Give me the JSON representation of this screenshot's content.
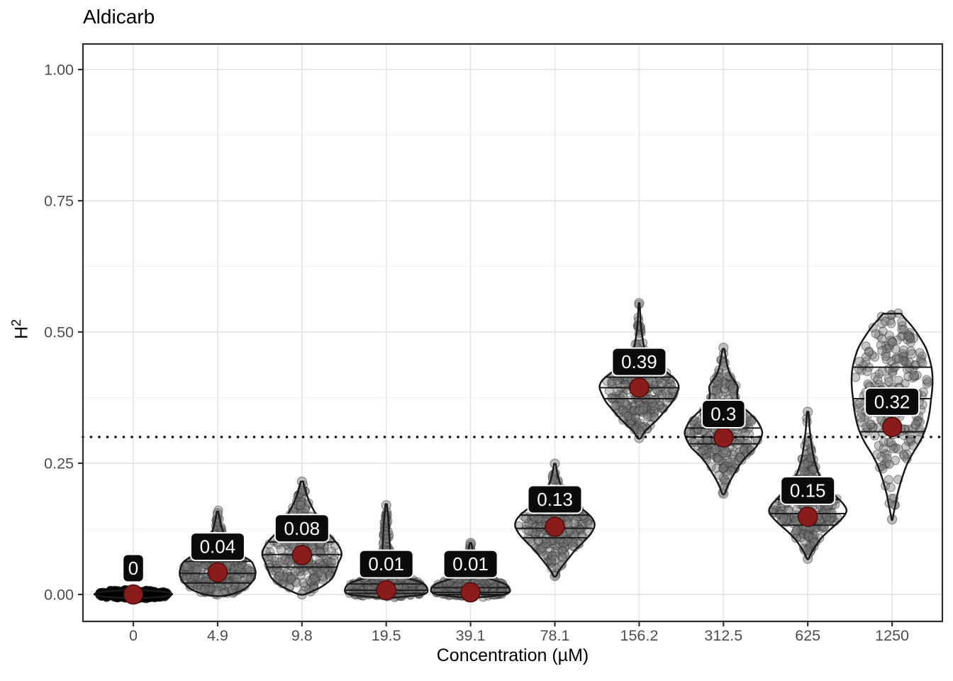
{
  "chart_data": {
    "type": "violin",
    "title": "Aldicarb",
    "xlabel": "Concentration (µM)",
    "ylabel_base": "H",
    "ylabel_exponent": "2",
    "ylim": [
      -0.05,
      1.05
    ],
    "grid": "major-and-minor-horizontal, major-vertical",
    "legend": "none",
    "reference_line": {
      "y": 0.3,
      "style": "dotted"
    },
    "y_axis": {
      "ticks": [
        {
          "value": 0.0,
          "label": "0.00"
        },
        {
          "value": 0.25,
          "label": "0.25"
        },
        {
          "value": 0.5,
          "label": "0.50"
        },
        {
          "value": 0.75,
          "label": "0.75"
        },
        {
          "value": 1.0,
          "label": "1.00"
        }
      ],
      "minor_ticks": [
        0.125,
        0.375,
        0.625,
        0.875
      ]
    },
    "categories": [
      "0",
      "4.9",
      "9.8",
      "19.5",
      "39.1",
      "78.1",
      "156.2",
      "312.5",
      "625",
      "1250"
    ],
    "series": [
      {
        "concentration": "0",
        "mean": 0.0,
        "mean_label": "0",
        "label_y": 0.05,
        "width_frac": 0.9,
        "n_points": 340,
        "dense": true,
        "quartile_lines": [],
        "end_points": [],
        "profile": [
          [
            -0.008,
            0.02
          ],
          [
            -0.006,
            0.45
          ],
          [
            -0.004,
            0.8
          ],
          [
            -0.001,
            1.0
          ],
          [
            0.002,
            1.0
          ],
          [
            0.005,
            0.8
          ],
          [
            0.007,
            0.45
          ],
          [
            0.009,
            0.02
          ]
        ]
      },
      {
        "concentration": "4.9",
        "mean": 0.042,
        "mean_label": "0.04",
        "label_y": 0.091,
        "width_frac": 0.9,
        "n_points": 280,
        "dense": false,
        "quartile_lines": [
          0.022,
          0.04,
          0.063
        ],
        "end_points": [
          0.0,
          0.155
        ],
        "profile": [
          [
            -0.003,
            0.05
          ],
          [
            0.0,
            0.35
          ],
          [
            0.01,
            0.7
          ],
          [
            0.025,
            0.92
          ],
          [
            0.04,
            1.0
          ],
          [
            0.055,
            0.95
          ],
          [
            0.065,
            0.85
          ],
          [
            0.08,
            0.5
          ],
          [
            0.1,
            0.24
          ],
          [
            0.125,
            0.12
          ],
          [
            0.145,
            0.05
          ],
          [
            0.158,
            0.02
          ]
        ]
      },
      {
        "concentration": "9.8",
        "mean": 0.075,
        "mean_label": "0.08",
        "label_y": 0.126,
        "width_frac": 0.94,
        "n_points": 280,
        "dense": false,
        "quartile_lines": [
          0.052,
          0.076,
          0.1
        ],
        "end_points": [
          0.0,
          0.215
        ],
        "profile": [
          [
            0.0,
            0.06
          ],
          [
            0.004,
            0.2
          ],
          [
            0.015,
            0.5
          ],
          [
            0.03,
            0.75
          ],
          [
            0.045,
            0.85
          ],
          [
            0.06,
            0.92
          ],
          [
            0.075,
            1.0
          ],
          [
            0.09,
            0.95
          ],
          [
            0.105,
            0.8
          ],
          [
            0.12,
            0.62
          ],
          [
            0.14,
            0.45
          ],
          [
            0.16,
            0.3
          ],
          [
            0.18,
            0.17
          ],
          [
            0.2,
            0.08
          ],
          [
            0.215,
            0.03
          ]
        ]
      },
      {
        "concentration": "19.5",
        "mean": 0.008,
        "mean_label": "0.01",
        "label_y": 0.058,
        "width_frac": 0.97,
        "n_points": 280,
        "dense": false,
        "quartile_lines": [
          0.002,
          0.008,
          0.02
        ],
        "end_points": [
          0.17
        ],
        "profile": [
          [
            -0.007,
            0.05
          ],
          [
            -0.004,
            0.45
          ],
          [
            -0.001,
            0.85
          ],
          [
            0.004,
            1.0
          ],
          [
            0.012,
            1.0
          ],
          [
            0.02,
            0.92
          ],
          [
            0.027,
            0.7
          ],
          [
            0.033,
            0.4
          ],
          [
            0.04,
            0.22
          ],
          [
            0.05,
            0.15
          ],
          [
            0.065,
            0.11
          ],
          [
            0.09,
            0.09
          ],
          [
            0.12,
            0.07
          ],
          [
            0.145,
            0.05
          ],
          [
            0.16,
            0.03
          ],
          [
            0.172,
            0.02
          ]
        ]
      },
      {
        "concentration": "39.1",
        "mean": 0.004,
        "mean_label": "0.01",
        "label_y": 0.058,
        "width_frac": 0.92,
        "n_points": 280,
        "dense": false,
        "quartile_lines": [
          0.0,
          0.004,
          0.013
        ],
        "end_points": [
          0.098
        ],
        "profile": [
          [
            -0.007,
            0.05
          ],
          [
            -0.004,
            0.4
          ],
          [
            -0.001,
            0.8
          ],
          [
            0.004,
            1.0
          ],
          [
            0.012,
            1.0
          ],
          [
            0.02,
            0.88
          ],
          [
            0.027,
            0.62
          ],
          [
            0.034,
            0.35
          ],
          [
            0.042,
            0.2
          ],
          [
            0.052,
            0.13
          ],
          [
            0.065,
            0.09
          ],
          [
            0.08,
            0.06
          ],
          [
            0.09,
            0.04
          ],
          [
            0.098,
            0.02
          ]
        ]
      },
      {
        "concentration": "78.1",
        "mean": 0.129,
        "mean_label": "0.13",
        "label_y": 0.181,
        "width_frac": 0.94,
        "n_points": 270,
        "dense": false,
        "quartile_lines": [
          0.108,
          0.126,
          0.151
        ],
        "end_points": [
          0.035,
          0.249
        ],
        "profile": [
          [
            0.035,
            0.03
          ],
          [
            0.045,
            0.1
          ],
          [
            0.055,
            0.2
          ],
          [
            0.07,
            0.36
          ],
          [
            0.085,
            0.52
          ],
          [
            0.1,
            0.72
          ],
          [
            0.115,
            0.9
          ],
          [
            0.13,
            1.0
          ],
          [
            0.142,
            0.97
          ],
          [
            0.155,
            0.82
          ],
          [
            0.168,
            0.6
          ],
          [
            0.182,
            0.38
          ],
          [
            0.196,
            0.22
          ],
          [
            0.21,
            0.14
          ],
          [
            0.228,
            0.07
          ],
          [
            0.249,
            0.02
          ]
        ]
      },
      {
        "concentration": "156.2",
        "mean": 0.394,
        "mean_label": "0.39",
        "label_y": 0.443,
        "width_frac": 0.94,
        "n_points": 270,
        "dense": false,
        "quartile_lines": [
          0.373,
          0.394,
          0.414
        ],
        "end_points": [
          0.298,
          0.555
        ],
        "profile": [
          [
            0.298,
            0.04
          ],
          [
            0.31,
            0.14
          ],
          [
            0.322,
            0.3
          ],
          [
            0.335,
            0.48
          ],
          [
            0.35,
            0.65
          ],
          [
            0.365,
            0.82
          ],
          [
            0.38,
            0.93
          ],
          [
            0.395,
            1.0
          ],
          [
            0.408,
            0.93
          ],
          [
            0.42,
            0.75
          ],
          [
            0.432,
            0.5
          ],
          [
            0.443,
            0.3
          ],
          [
            0.455,
            0.2
          ],
          [
            0.47,
            0.13
          ],
          [
            0.49,
            0.08
          ],
          [
            0.515,
            0.04
          ],
          [
            0.545,
            0.02
          ],
          [
            0.555,
            0.01
          ]
        ]
      },
      {
        "concentration": "312.5",
        "mean": 0.299,
        "mean_label": "0.3",
        "label_y": 0.344,
        "width_frac": 0.92,
        "n_points": 270,
        "dense": false,
        "quartile_lines": [
          0.287,
          0.3,
          0.317
        ],
        "end_points": [
          0.192,
          0.47
        ],
        "profile": [
          [
            0.192,
            0.03
          ],
          [
            0.205,
            0.1
          ],
          [
            0.22,
            0.2
          ],
          [
            0.235,
            0.32
          ],
          [
            0.25,
            0.45
          ],
          [
            0.265,
            0.62
          ],
          [
            0.28,
            0.83
          ],
          [
            0.295,
            0.95
          ],
          [
            0.308,
            1.0
          ],
          [
            0.32,
            0.95
          ],
          [
            0.332,
            0.85
          ],
          [
            0.345,
            0.68
          ],
          [
            0.357,
            0.5
          ],
          [
            0.37,
            0.38
          ],
          [
            0.382,
            0.35
          ],
          [
            0.395,
            0.37
          ],
          [
            0.405,
            0.3
          ],
          [
            0.418,
            0.18
          ],
          [
            0.435,
            0.1
          ],
          [
            0.452,
            0.06
          ],
          [
            0.468,
            0.02
          ]
        ]
      },
      {
        "concentration": "625",
        "mean": 0.148,
        "mean_label": "0.15",
        "label_y": 0.198,
        "width_frac": 0.92,
        "n_points": 270,
        "dense": false,
        "quartile_lines": [
          0.132,
          0.154,
          0.181
        ],
        "end_points": [
          0.068,
          0.348
        ],
        "profile": [
          [
            0.068,
            0.02
          ],
          [
            0.078,
            0.08
          ],
          [
            0.09,
            0.18
          ],
          [
            0.105,
            0.32
          ],
          [
            0.12,
            0.52
          ],
          [
            0.135,
            0.75
          ],
          [
            0.148,
            0.92
          ],
          [
            0.16,
            1.0
          ],
          [
            0.172,
            0.92
          ],
          [
            0.185,
            0.75
          ],
          [
            0.2,
            0.55
          ],
          [
            0.215,
            0.4
          ],
          [
            0.23,
            0.28
          ],
          [
            0.25,
            0.19
          ],
          [
            0.27,
            0.13
          ],
          [
            0.29,
            0.09
          ],
          [
            0.315,
            0.05
          ],
          [
            0.348,
            0.02
          ]
        ]
      },
      {
        "concentration": "1250",
        "mean": 0.319,
        "mean_label": "0.32",
        "label_y": 0.367,
        "width_frac": 0.96,
        "n_points": 250,
        "dense": false,
        "quartile_lines": [
          0.31,
          0.373,
          0.433
        ],
        "end_points": [
          0.143
        ],
        "profile": [
          [
            0.143,
            0.01
          ],
          [
            0.155,
            0.04
          ],
          [
            0.17,
            0.08
          ],
          [
            0.19,
            0.13
          ],
          [
            0.21,
            0.2
          ],
          [
            0.23,
            0.28
          ],
          [
            0.25,
            0.38
          ],
          [
            0.27,
            0.52
          ],
          [
            0.29,
            0.68
          ],
          [
            0.31,
            0.8
          ],
          [
            0.33,
            0.88
          ],
          [
            0.35,
            0.93
          ],
          [
            0.37,
            0.96
          ],
          [
            0.39,
            0.99
          ],
          [
            0.41,
            1.0
          ],
          [
            0.43,
            0.98
          ],
          [
            0.45,
            0.92
          ],
          [
            0.47,
            0.83
          ],
          [
            0.49,
            0.68
          ],
          [
            0.51,
            0.5
          ],
          [
            0.525,
            0.33
          ],
          [
            0.535,
            0.22
          ]
        ]
      }
    ],
    "colors": {
      "mean_dot": "#8B1C1C",
      "mean_dot_edge": "#4a0d0d",
      "label_bg": "#0b0b0b",
      "label_border": "#ffffff",
      "label_text": "#ffffff",
      "violin_stroke": "#1a1a1a",
      "point_fill": "#787878",
      "point_edge": "#2d2d2d",
      "grid_major": "#e6e6e6",
      "grid_minor": "#f0f0f0",
      "axis_text": "#4d4d4d",
      "panel_border": "#2e2e2e",
      "reference_line": "#000000"
    }
  }
}
